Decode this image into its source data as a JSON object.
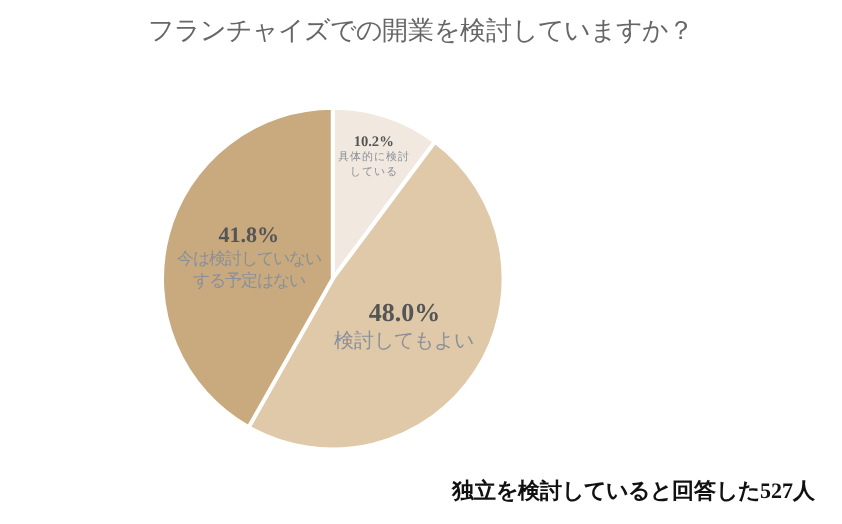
{
  "chart_data": {
    "type": "pie",
    "title": "フランチャイズでの開業を検討していますか？",
    "categories": [
      "具体的に検討している",
      "検討してもよい",
      "今は検討していないする予定はない"
    ],
    "values": [
      10.2,
      48.0,
      41.8
    ],
    "value_labels": [
      "10.2%",
      "48.0%",
      "41.8%"
    ],
    "colors": [
      "#f1e9df",
      "#dfc9a8",
      "#c9aa7e"
    ],
    "annotations": [
      "独立を検討していると回答した527人"
    ],
    "legend": false
  }
}
